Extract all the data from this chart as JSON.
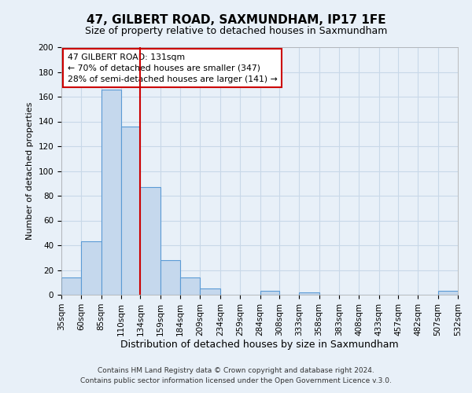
{
  "title": "47, GILBERT ROAD, SAXMUNDHAM, IP17 1FE",
  "subtitle": "Size of property relative to detached houses in Saxmundham",
  "xlabel": "Distribution of detached houses by size in Saxmundham",
  "ylabel": "Number of detached properties",
  "footer_line1": "Contains HM Land Registry data © Crown copyright and database right 2024.",
  "footer_line2": "Contains public sector information licensed under the Open Government Licence v.3.0.",
  "bar_edges": [
    35,
    60,
    85,
    110,
    134,
    159,
    184,
    209,
    234,
    259,
    284,
    308,
    333,
    358,
    383,
    408,
    433,
    457,
    482,
    507,
    532
  ],
  "bar_heights": [
    14,
    43,
    166,
    136,
    87,
    28,
    14,
    5,
    0,
    0,
    3,
    0,
    2,
    0,
    0,
    0,
    0,
    0,
    0,
    3
  ],
  "bar_color": "#c5d8ed",
  "bar_edge_color": "#5b9bd5",
  "vline_x": 134,
  "vline_color": "#cc0000",
  "ylim": [
    0,
    200
  ],
  "yticks": [
    0,
    20,
    40,
    60,
    80,
    100,
    120,
    140,
    160,
    180,
    200
  ],
  "annotation_title": "47 GILBERT ROAD: 131sqm",
  "annotation_line1": "← 70% of detached houses are smaller (347)",
  "annotation_line2": "28% of semi-detached houses are larger (141) →",
  "annotation_box_color": "#ffffff",
  "annotation_box_edge_color": "#cc0000",
  "grid_color": "#c8d8e8",
  "background_color": "#e8f0f8",
  "title_fontsize": 11,
  "subtitle_fontsize": 9,
  "ylabel_fontsize": 8,
  "xlabel_fontsize": 9,
  "tick_fontsize": 7.5,
  "footer_fontsize": 6.5
}
